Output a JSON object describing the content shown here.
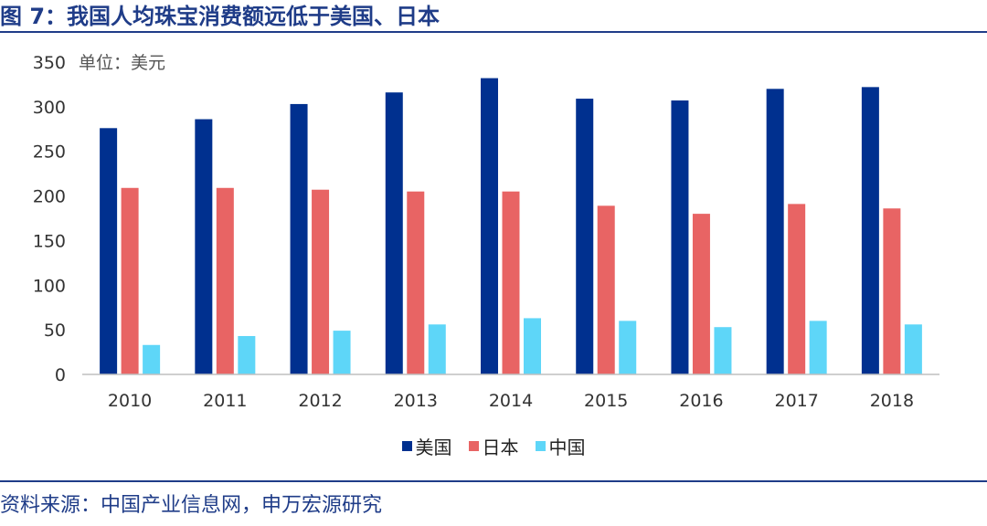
{
  "figure": {
    "title": "图 7：我国人均珠宝消费额远低于美国、日本",
    "source": "资料来源：中国产业信息网，申万宏源研究"
  },
  "chart_data": {
    "type": "bar",
    "unit_label": "单位：美元",
    "categories": [
      "2010",
      "2011",
      "2012",
      "2013",
      "2014",
      "2015",
      "2016",
      "2017",
      "2018"
    ],
    "series": [
      {
        "name": "美国",
        "color": "#00308f",
        "values": [
          276,
          286,
          303,
          316,
          332,
          309,
          307,
          320,
          322
        ]
      },
      {
        "name": "日本",
        "color": "#e86464",
        "values": [
          209,
          209,
          207,
          205,
          205,
          189,
          180,
          191,
          186
        ]
      },
      {
        "name": "中国",
        "color": "#5ed6f8",
        "values": [
          33,
          43,
          49,
          56,
          63,
          60,
          53,
          60,
          56
        ]
      }
    ],
    "ylim": [
      0,
      350
    ],
    "yticks": [
      0,
      50,
      100,
      150,
      200,
      250,
      300,
      350
    ],
    "grid": false,
    "legend": "bottom"
  }
}
